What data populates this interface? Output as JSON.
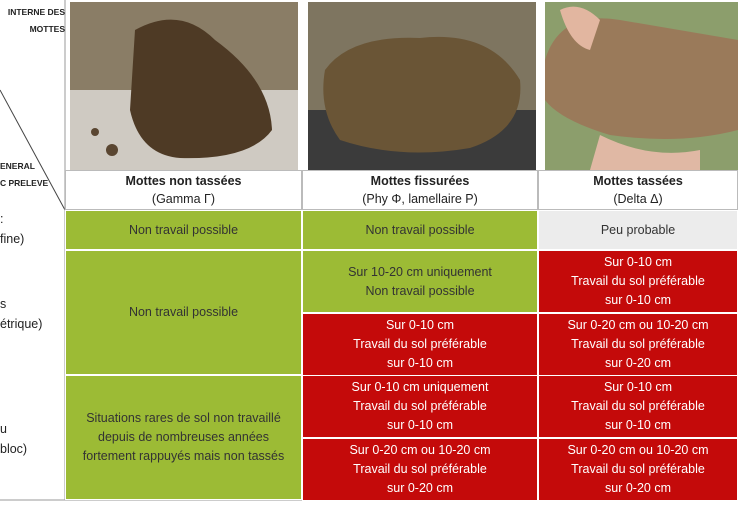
{
  "header": {
    "corner_top": [
      "INTERNE DES",
      "MOTTES"
    ],
    "corner_bottom": [
      "ENERAL",
      "C PRELEVE"
    ],
    "columns": [
      {
        "title": "Mottes non tassées",
        "subtitle": "(Gamma Γ)"
      },
      {
        "title": "Mottes fissurées",
        "subtitle": "(Phy Φ, lamellaire P)"
      },
      {
        "title": "Mottes tassées",
        "subtitle": "(Delta Δ)"
      }
    ]
  },
  "rows": [
    {
      "label": [
        ":",
        "fine)"
      ],
      "cells": [
        {
          "lines": [
            "Non travail possible"
          ],
          "color": "#9cbb35"
        },
        {
          "lines": [
            "Non travail possible"
          ],
          "color": "#9cbb35"
        },
        {
          "lines": [
            "Peu probable"
          ],
          "color": "#ececec"
        }
      ]
    },
    {
      "label": [
        "s",
        "étrique)"
      ],
      "cells": [
        {
          "lines": [
            "Non travail possible"
          ],
          "color": "#9cbb35"
        },
        {
          "lines": [
            "Sur 10-20 cm uniquement",
            "Non travail possible"
          ],
          "color": "#9cbb35"
        },
        {
          "lines": [
            "Sur 0-10 cm",
            "Travail du sol préférable",
            "sur 0-10 cm"
          ],
          "color": "#c40a0a"
        },
        {
          "lines": [
            "Sur 0-10 cm",
            "Travail du sol préférable",
            "sur 0-10 cm"
          ],
          "color": "#c40a0a"
        },
        {
          "lines": [
            "Sur 0-20 cm ou 10-20 cm",
            "Travail du sol préférable",
            "sur 0-20 cm"
          ],
          "color": "#c40a0a"
        }
      ]
    },
    {
      "label": [
        "u",
        "bloc)"
      ],
      "cells": [
        {
          "lines": [
            "Situations rares de sol non travaillé",
            "depuis de nombreuses années",
            "fortement rappuyés mais non tassés"
          ],
          "color": "#9cbb35"
        },
        {
          "lines": [
            "Sur 0-10 cm uniquement",
            "Travail du sol préférable",
            "sur 0-10 cm"
          ],
          "color": "#c40a0a"
        },
        {
          "lines": [
            "Sur 0-20 cm ou 10-20 cm",
            "Travail du sol préférable",
            "sur 0-20 cm"
          ],
          "color": "#c40a0a"
        },
        {
          "lines": [
            "Sur 0-10 cm",
            "Travail du sol préférable",
            "sur 0-10 cm"
          ],
          "color": "#c40a0a"
        },
        {
          "lines": [
            "Sur 0-20 cm ou 10-20 cm",
            "Travail du sol préférable",
            "sur 0-20 cm"
          ],
          "color": "#c40a0a"
        }
      ]
    }
  ]
}
